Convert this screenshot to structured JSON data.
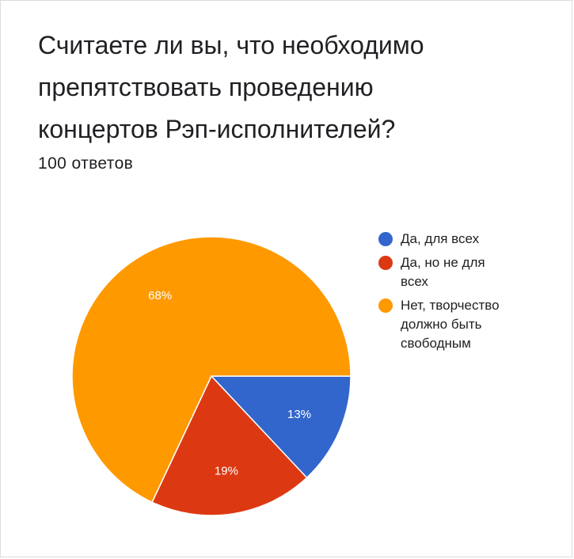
{
  "chart_data": {
    "type": "pie",
    "title_lines": [
      "Считаете ли вы, что необходимо",
      "препятствовать проведению",
      "концертов Рэп-исполнителей?"
    ],
    "subtitle": "100 ответов",
    "legend_position": "right",
    "slices": [
      {
        "label_lines": [
          "Да, для всех"
        ],
        "value": 13,
        "pct_label": "13%",
        "color": "#3366cc"
      },
      {
        "label_lines": [
          "Да, но не для",
          "всех"
        ],
        "value": 19,
        "pct_label": "19%",
        "color": "#dc3912"
      },
      {
        "label_lines": [
          "Нет, творчество",
          "должно быть",
          "свободным"
        ],
        "value": 68,
        "pct_label": "68%",
        "color": "#ff9900"
      }
    ]
  }
}
